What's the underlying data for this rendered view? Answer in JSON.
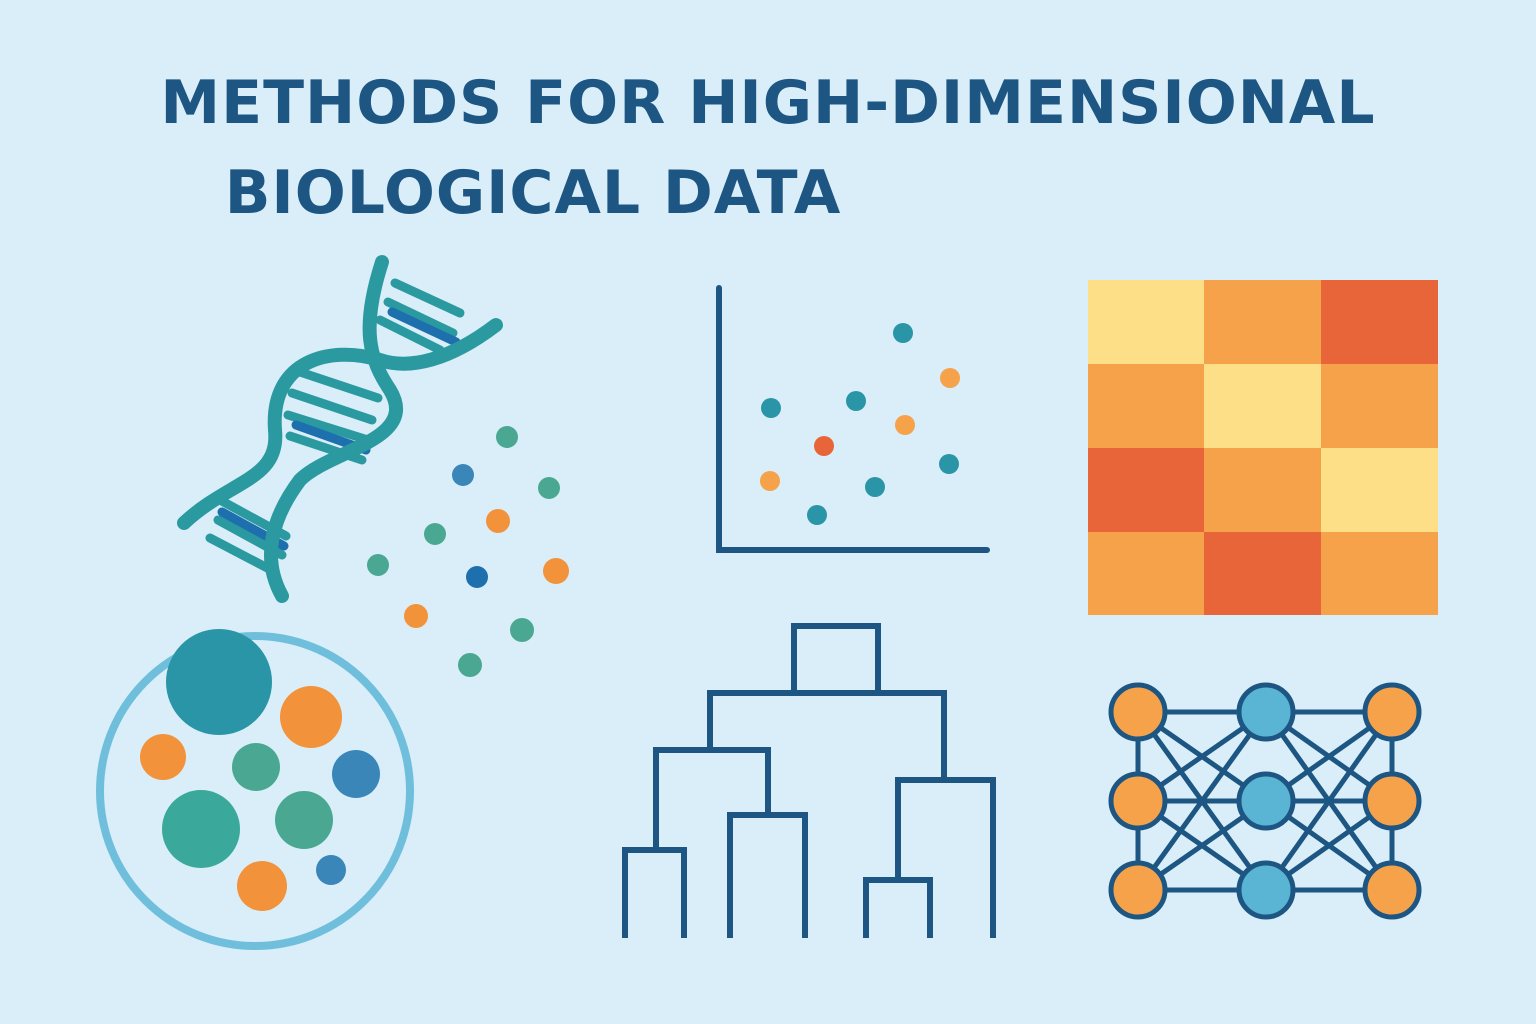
{
  "title": {
    "line1": "METHODS FOR HIGH-DIMENSIONAL",
    "line2": "BIOLOGICAL DATA"
  },
  "colors": {
    "background": "#d9eef8",
    "navy": "#1d5683",
    "teal": "#2b9aa0",
    "teal_dark": "#2a95a6",
    "green": "#4aa892",
    "blue": "#3a86b8",
    "light_blue": "#5ab4d4",
    "orange": "#f2923a",
    "red_orange": "#e8653a",
    "yellow": "#fcdf86",
    "mid_orange": "#f5a24a"
  },
  "icons": [
    "dna-helix-icon",
    "particle-scatter-icon",
    "scatter-plot-icon",
    "heatmap-icon",
    "cell-clusters-icon",
    "dendrogram-icon",
    "neural-network-icon"
  ],
  "heatmap": {
    "rows": 4,
    "cols": 3,
    "cells": [
      [
        "yellow",
        "mid_orange",
        "red_orange"
      ],
      [
        "mid_orange",
        "yellow",
        "mid_orange"
      ],
      [
        "red_orange",
        "mid_orange",
        "yellow"
      ],
      [
        "mid_orange",
        "red_orange",
        "mid_orange"
      ]
    ]
  },
  "network": {
    "layers": 3,
    "nodes_per_layer": 3
  }
}
